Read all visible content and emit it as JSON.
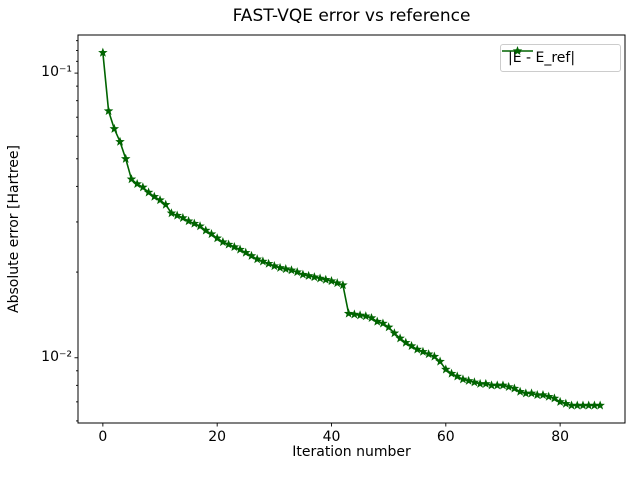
{
  "chart_data": {
    "type": "line",
    "title": "FAST-VQE error vs reference",
    "xlabel": "Iteration number",
    "ylabel": "Absolute error [Hartree]",
    "yscale": "log",
    "grid": false,
    "xlim": [
      -4.35,
      91.35
    ],
    "ylim": [
      0.0059,
      0.1361
    ],
    "xticks": {
      "values": [
        0,
        20,
        40,
        60,
        80
      ],
      "labels": [
        "0",
        "20",
        "40",
        "60",
        "80"
      ]
    },
    "yticks": {
      "values": [
        0.1,
        0.01
      ],
      "labels": [
        "10⁻¹",
        "10⁻²"
      ]
    },
    "yminorticks": [
      0.006,
      0.007,
      0.008,
      0.009,
      0.02,
      0.03,
      0.04,
      0.05,
      0.06,
      0.07,
      0.08,
      0.09,
      0.11,
      0.12,
      0.13
    ],
    "legend": {
      "position": "upper right",
      "entries": [
        {
          "label": "|E - E_ref|",
          "color": "#006400",
          "marker": "star"
        }
      ]
    },
    "series": [
      {
        "name": "|E - E_ref|",
        "color": "#006400",
        "marker": "star",
        "x": [
          0,
          1,
          2,
          3,
          4,
          5,
          6,
          7,
          8,
          9,
          10,
          11,
          12,
          13,
          14,
          15,
          16,
          17,
          18,
          19,
          20,
          21,
          22,
          23,
          24,
          25,
          26,
          27,
          28,
          29,
          30,
          31,
          32,
          33,
          34,
          35,
          36,
          37,
          38,
          39,
          40,
          41,
          42,
          43,
          44,
          45,
          46,
          47,
          48,
          49,
          50,
          51,
          52,
          53,
          54,
          55,
          56,
          57,
          58,
          59,
          60,
          61,
          62,
          63,
          64,
          65,
          66,
          67,
          68,
          69,
          70,
          71,
          72,
          73,
          74,
          75,
          76,
          77,
          78,
          79,
          80,
          81,
          82,
          83,
          84,
          85,
          86,
          87
        ],
        "y": [
          0.118,
          0.0736,
          0.0637,
          0.0574,
          0.05,
          0.0424,
          0.0408,
          0.0397,
          0.0381,
          0.0368,
          0.0358,
          0.0345,
          0.0322,
          0.0316,
          0.031,
          0.0302,
          0.0296,
          0.029,
          0.028,
          0.0272,
          0.0263,
          0.0255,
          0.025,
          0.0245,
          0.024,
          0.0234,
          0.0228,
          0.0222,
          0.0218,
          0.0214,
          0.021,
          0.0207,
          0.0205,
          0.0203,
          0.02,
          0.0196,
          0.0194,
          0.0192,
          0.019,
          0.0188,
          0.0186,
          0.0183,
          0.018,
          0.0143,
          0.0142,
          0.0141,
          0.014,
          0.0138,
          0.0134,
          0.0132,
          0.0128,
          0.0122,
          0.0117,
          0.0113,
          0.011,
          0.0107,
          0.0105,
          0.0103,
          0.0101,
          0.0097,
          0.0091,
          0.0088,
          0.0086,
          0.0084,
          0.0083,
          0.0082,
          0.0081,
          0.0081,
          0.008,
          0.008,
          0.008,
          0.0079,
          0.0078,
          0.0076,
          0.0075,
          0.0075,
          0.0074,
          0.0074,
          0.0073,
          0.0072,
          0.007,
          0.0069,
          0.0068,
          0.0068,
          0.0068,
          0.0068,
          0.0068,
          0.0068
        ]
      }
    ],
    "colors": {
      "line": "#006400",
      "axes": "#000000",
      "legend_border": "#cccccc",
      "background": "#ffffff"
    }
  }
}
